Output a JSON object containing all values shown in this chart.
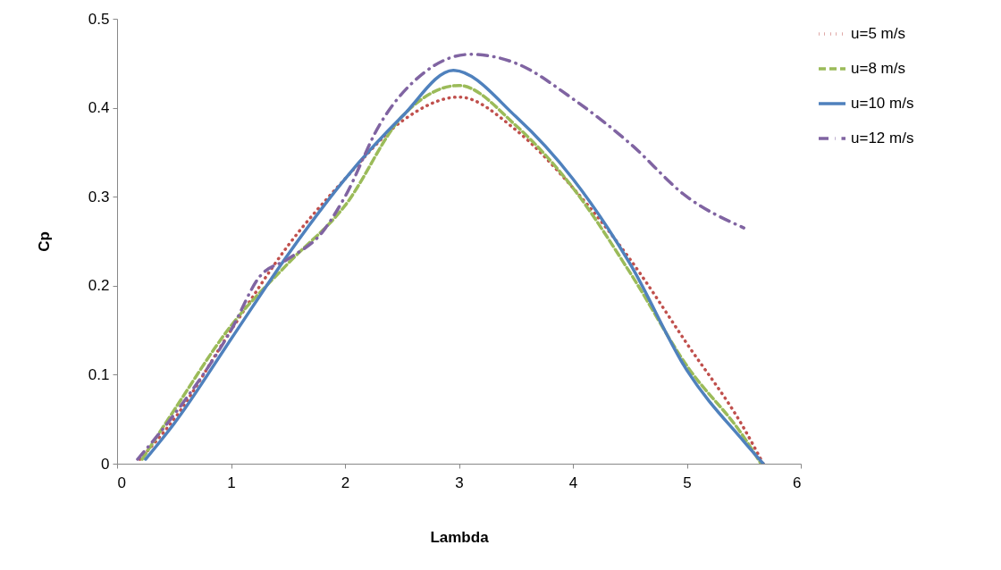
{
  "chart_data": {
    "type": "line",
    "xlabel": "Lambda",
    "ylabel": "Cp",
    "xlim": [
      0,
      6
    ],
    "xticks": [
      0,
      1,
      2,
      3,
      4,
      5,
      6
    ],
    "ylim": [
      0,
      0.5
    ],
    "yticks": [
      0,
      0.1,
      0.2,
      0.3,
      0.4,
      0.5
    ],
    "grid": false,
    "legend": "right",
    "series": [
      {
        "name": "u=5 m/s",
        "color": "#c0504d",
        "line_style": "dotted",
        "x": [
          0.2,
          0.5,
          1,
          1.5,
          2,
          2.5,
          3,
          3.5,
          4,
          4.5,
          5,
          5.5,
          5.67
        ],
        "values": [
          0.005,
          0.05,
          0.15,
          0.245,
          0.32,
          0.385,
          0.412,
          0.375,
          0.31,
          0.23,
          0.135,
          0.04,
          0
        ]
      },
      {
        "name": "u=8 m/s",
        "color": "#9bbb59",
        "line_style": "dashed",
        "x": [
          0.22,
          0.5,
          1,
          1.5,
          2,
          2.5,
          3,
          3.5,
          4,
          4.5,
          5,
          5.5,
          5.65
        ],
        "values": [
          0.005,
          0.06,
          0.155,
          0.225,
          0.29,
          0.39,
          0.425,
          0.38,
          0.31,
          0.215,
          0.11,
          0.03,
          0
        ]
      },
      {
        "name": "u=10 m/s",
        "color": "#4f81bd",
        "line_style": "solid",
        "x": [
          0.25,
          0.5,
          1,
          1.5,
          2,
          2.5,
          2.95,
          3.5,
          4,
          4.5,
          5,
          5.5,
          5.67
        ],
        "values": [
          0.005,
          0.045,
          0.14,
          0.235,
          0.32,
          0.39,
          0.442,
          0.39,
          0.32,
          0.225,
          0.105,
          0.025,
          0
        ]
      },
      {
        "name": "u=12 m/s",
        "color": "#8064a2",
        "line_style": "dashdot",
        "x": [
          0.18,
          0.5,
          1,
          1.25,
          1.5,
          1.8,
          2,
          2.3,
          2.7,
          3.1,
          3.5,
          4,
          4.5,
          5,
          5.5
        ],
        "values": [
          0.005,
          0.055,
          0.15,
          0.21,
          0.23,
          0.26,
          0.3,
          0.38,
          0.44,
          0.46,
          0.45,
          0.41,
          0.36,
          0.3,
          0.265
        ]
      }
    ]
  }
}
